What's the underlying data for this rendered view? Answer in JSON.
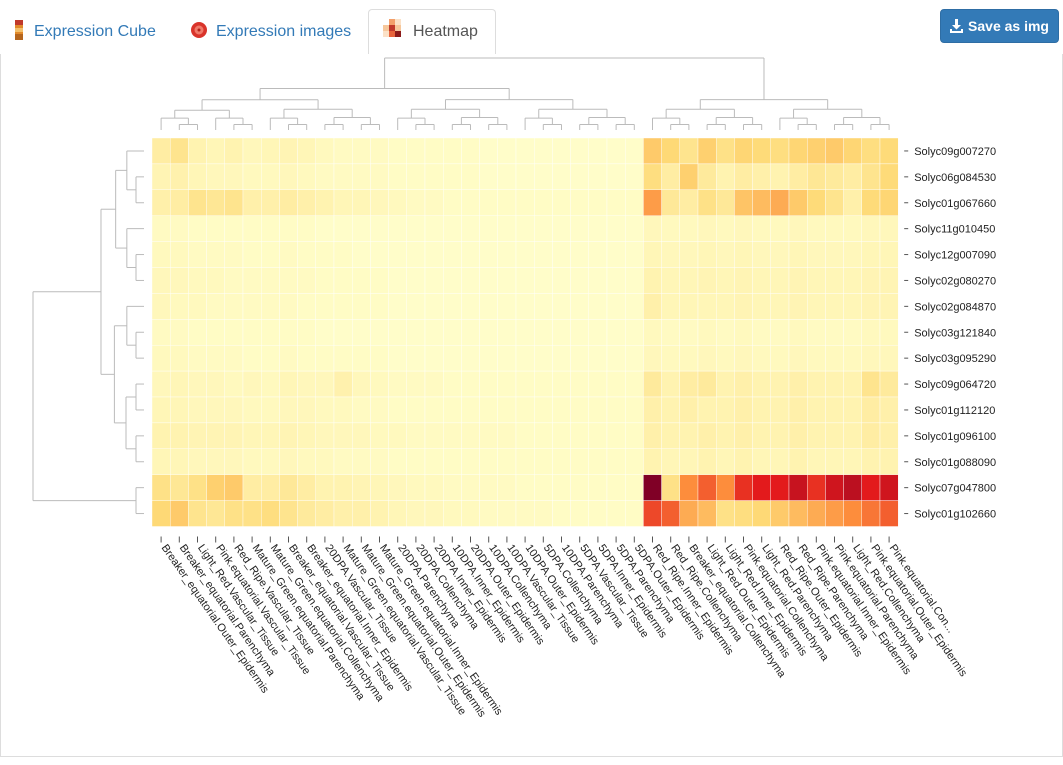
{
  "tabs": [
    {
      "label": "Expression Cube",
      "icon": "cube-icon",
      "active": false
    },
    {
      "label": "Expression images",
      "icon": "tomato-icon",
      "active": false
    },
    {
      "label": "Heatmap",
      "icon": "heatmap-icon",
      "active": true
    }
  ],
  "save_button": {
    "label": "Save as img",
    "icon": "download-icon"
  },
  "colors": {
    "accent": "#337ab7",
    "heat_low": "#ffffcc",
    "heat_mid": "#feb24c",
    "heat_high": "#800026"
  },
  "chart_data": {
    "type": "heatmap",
    "rows": [
      "Solyc09g007270",
      "Solyc06g084530",
      "Solyc01g067660",
      "Solyc11g010450",
      "Solyc12g007090",
      "Solyc02g080270",
      "Solyc02g084870",
      "Solyc03g121840",
      "Solyc03g095290",
      "Solyc09g064720",
      "Solyc01g112120",
      "Solyc01g096100",
      "Solyc01g088090",
      "Solyc07g047800",
      "Solyc01g102660"
    ],
    "columns": [
      "Breaker_equatorial.Outer_Epidermis",
      "Breaker_equatorial.Parenchyma",
      "Light_Red.Vascular_Tissue",
      "Pink.equatorial.Vascular_Tissue",
      "Red_Ripe.Vascular_Tissue",
      "Mature_Green.equatorial.Parenchyma",
      "Mature_Green.equatorial.Collenchyma",
      "Breaker_equatorial.Vascular_Tissue",
      "Breaker_equatorial.Inner_Epidermis",
      "20DPA.Vascular_Tissue",
      "Mature_Green.equatorial.Vascular_Tissue",
      "Mature_Green.equatorial.Outer_Epidermis",
      "Mature_Green.equatorial.Inner_Epidermis",
      "20DPA.Parenchyma",
      "20DPA.Collenchyma",
      "20DPA.Inner_Epidermis",
      "10DPA.Inner_Epidermis",
      "20DPA.Outer_Epidermis",
      "10DPA.Collenchyma",
      "10DPA.Vascular_Tissue",
      "10DPA.Outer_Epidermis",
      "5DPA.Collenchyma",
      "10DPA.Parenchyma",
      "5DPA.Vascular_Tissue",
      "5DPA.Inner_Epidermis",
      "5DPA.Parenchyma",
      "5DPA.Outer_Epidermis",
      "Red_Ripe.Inner_Epidermis",
      "Red_Ripe.Collenchyma",
      "Breaker_equatorial.Collenchyma",
      "Light_Red.Outer_Epidermis",
      "Light_Red.Inner_Epidermis",
      "Pink.equatorial.Collenchyma",
      "Light_Red.Parenchyma",
      "Red_Ripe.Outer_Epidermis",
      "Red_Ripe.Parenchyma",
      "Pink.equatorial.Inner_Epidermis",
      "Pink.equatorial.Parenchyma",
      "Light_Red.Collenchyma",
      "Pink.equatorial.Outer_Epidermis",
      "Pink.equatorial.Con..."
    ],
    "values_scale": "0 = lowest (pale yellow) to 1 = highest (dark red)",
    "values": [
      [
        0.12,
        0.18,
        0.08,
        0.06,
        0.08,
        0.05,
        0.06,
        0.07,
        0.06,
        0.04,
        0.03,
        0.03,
        0.03,
        0.02,
        0.02,
        0.02,
        0.02,
        0.02,
        0.01,
        0.01,
        0.01,
        0.01,
        0.01,
        0.01,
        0.01,
        0.01,
        0.01,
        0.3,
        0.25,
        0.18,
        0.28,
        0.2,
        0.26,
        0.24,
        0.22,
        0.26,
        0.28,
        0.3,
        0.26,
        0.22,
        0.24
      ],
      [
        0.07,
        0.09,
        0.06,
        0.05,
        0.05,
        0.04,
        0.04,
        0.05,
        0.04,
        0.03,
        0.03,
        0.03,
        0.03,
        0.02,
        0.02,
        0.02,
        0.02,
        0.02,
        0.01,
        0.01,
        0.01,
        0.01,
        0.01,
        0.01,
        0.01,
        0.01,
        0.01,
        0.22,
        0.12,
        0.28,
        0.14,
        0.08,
        0.12,
        0.1,
        0.08,
        0.12,
        0.16,
        0.14,
        0.12,
        0.18,
        0.24
      ],
      [
        0.1,
        0.12,
        0.18,
        0.16,
        0.18,
        0.1,
        0.1,
        0.12,
        0.1,
        0.08,
        0.06,
        0.06,
        0.05,
        0.04,
        0.03,
        0.03,
        0.02,
        0.02,
        0.02,
        0.02,
        0.02,
        0.02,
        0.02,
        0.02,
        0.02,
        0.02,
        0.02,
        0.45,
        0.15,
        0.12,
        0.2,
        0.15,
        0.32,
        0.35,
        0.4,
        0.3,
        0.24,
        0.18,
        0.1,
        0.24,
        0.26
      ],
      [
        0.03,
        0.03,
        0.02,
        0.02,
        0.02,
        0.02,
        0.02,
        0.02,
        0.02,
        0.01,
        0.01,
        0.01,
        0.01,
        0.01,
        0.01,
        0.01,
        0.01,
        0.01,
        0.01,
        0.01,
        0.01,
        0.01,
        0.01,
        0.01,
        0.01,
        0.01,
        0.01,
        0.05,
        0.04,
        0.04,
        0.05,
        0.04,
        0.05,
        0.04,
        0.04,
        0.05,
        0.04,
        0.04,
        0.04,
        0.05,
        0.05
      ],
      [
        0.04,
        0.04,
        0.03,
        0.03,
        0.03,
        0.02,
        0.02,
        0.03,
        0.02,
        0.02,
        0.02,
        0.01,
        0.01,
        0.01,
        0.01,
        0.01,
        0.01,
        0.01,
        0.01,
        0.01,
        0.01,
        0.01,
        0.01,
        0.01,
        0.01,
        0.01,
        0.01,
        0.06,
        0.05,
        0.05,
        0.06,
        0.05,
        0.06,
        0.05,
        0.05,
        0.06,
        0.05,
        0.05,
        0.05,
        0.06,
        0.06
      ],
      [
        0.05,
        0.05,
        0.04,
        0.04,
        0.03,
        0.03,
        0.03,
        0.03,
        0.03,
        0.02,
        0.02,
        0.02,
        0.02,
        0.01,
        0.01,
        0.01,
        0.01,
        0.01,
        0.01,
        0.01,
        0.01,
        0.01,
        0.01,
        0.01,
        0.01,
        0.01,
        0.01,
        0.08,
        0.06,
        0.06,
        0.07,
        0.06,
        0.07,
        0.06,
        0.06,
        0.07,
        0.06,
        0.06,
        0.06,
        0.07,
        0.07
      ],
      [
        0.05,
        0.04,
        0.04,
        0.03,
        0.03,
        0.03,
        0.03,
        0.03,
        0.02,
        0.02,
        0.02,
        0.02,
        0.02,
        0.01,
        0.01,
        0.01,
        0.01,
        0.01,
        0.01,
        0.01,
        0.01,
        0.01,
        0.01,
        0.01,
        0.01,
        0.01,
        0.01,
        0.1,
        0.06,
        0.06,
        0.06,
        0.06,
        0.07,
        0.06,
        0.06,
        0.07,
        0.06,
        0.06,
        0.06,
        0.07,
        0.07
      ],
      [
        0.03,
        0.03,
        0.02,
        0.02,
        0.02,
        0.02,
        0.02,
        0.02,
        0.02,
        0.01,
        0.01,
        0.01,
        0.01,
        0.01,
        0.01,
        0.01,
        0.01,
        0.01,
        0.01,
        0.01,
        0.01,
        0.01,
        0.01,
        0.01,
        0.01,
        0.01,
        0.01,
        0.04,
        0.03,
        0.03,
        0.04,
        0.03,
        0.04,
        0.03,
        0.03,
        0.04,
        0.03,
        0.03,
        0.03,
        0.04,
        0.04
      ],
      [
        0.04,
        0.04,
        0.03,
        0.03,
        0.03,
        0.02,
        0.02,
        0.03,
        0.02,
        0.02,
        0.02,
        0.02,
        0.02,
        0.01,
        0.01,
        0.01,
        0.01,
        0.01,
        0.01,
        0.01,
        0.01,
        0.01,
        0.01,
        0.01,
        0.01,
        0.01,
        0.01,
        0.05,
        0.04,
        0.04,
        0.05,
        0.04,
        0.05,
        0.04,
        0.04,
        0.05,
        0.04,
        0.04,
        0.04,
        0.05,
        0.05
      ],
      [
        0.05,
        0.06,
        0.05,
        0.05,
        0.04,
        0.05,
        0.04,
        0.06,
        0.05,
        0.05,
        0.09,
        0.05,
        0.04,
        0.03,
        0.03,
        0.03,
        0.02,
        0.02,
        0.02,
        0.02,
        0.02,
        0.02,
        0.02,
        0.02,
        0.02,
        0.02,
        0.02,
        0.14,
        0.08,
        0.12,
        0.14,
        0.08,
        0.1,
        0.08,
        0.08,
        0.1,
        0.08,
        0.08,
        0.08,
        0.18,
        0.14
      ],
      [
        0.06,
        0.06,
        0.05,
        0.05,
        0.05,
        0.04,
        0.04,
        0.05,
        0.05,
        0.04,
        0.04,
        0.03,
        0.03,
        0.02,
        0.02,
        0.02,
        0.02,
        0.02,
        0.02,
        0.02,
        0.02,
        0.02,
        0.02,
        0.02,
        0.02,
        0.02,
        0.02,
        0.1,
        0.08,
        0.1,
        0.08,
        0.08,
        0.1,
        0.08,
        0.08,
        0.1,
        0.08,
        0.08,
        0.08,
        0.12,
        0.1
      ],
      [
        0.08,
        0.08,
        0.07,
        0.07,
        0.07,
        0.06,
        0.06,
        0.07,
        0.06,
        0.05,
        0.05,
        0.05,
        0.04,
        0.04,
        0.03,
        0.03,
        0.03,
        0.03,
        0.03,
        0.03,
        0.02,
        0.02,
        0.02,
        0.02,
        0.02,
        0.02,
        0.02,
        0.1,
        0.08,
        0.08,
        0.1,
        0.08,
        0.1,
        0.08,
        0.08,
        0.1,
        0.08,
        0.08,
        0.08,
        0.12,
        0.1
      ],
      [
        0.06,
        0.06,
        0.05,
        0.05,
        0.05,
        0.04,
        0.04,
        0.05,
        0.04,
        0.04,
        0.03,
        0.03,
        0.03,
        0.02,
        0.02,
        0.02,
        0.02,
        0.02,
        0.02,
        0.02,
        0.02,
        0.02,
        0.02,
        0.02,
        0.02,
        0.02,
        0.02,
        0.08,
        0.06,
        0.06,
        0.08,
        0.06,
        0.08,
        0.06,
        0.06,
        0.08,
        0.06,
        0.06,
        0.06,
        0.08,
        0.08
      ],
      [
        0.2,
        0.16,
        0.2,
        0.28,
        0.3,
        0.12,
        0.12,
        0.15,
        0.12,
        0.08,
        0.08,
        0.07,
        0.06,
        0.05,
        0.04,
        0.04,
        0.03,
        0.03,
        0.03,
        0.03,
        0.02,
        0.02,
        0.02,
        0.02,
        0.02,
        0.02,
        0.02,
        1.0,
        0.2,
        0.5,
        0.6,
        0.5,
        0.7,
        0.75,
        0.75,
        0.82,
        0.7,
        0.8,
        0.85,
        0.75,
        0.8
      ],
      [
        0.25,
        0.3,
        0.18,
        0.16,
        0.2,
        0.2,
        0.22,
        0.18,
        0.14,
        0.12,
        0.1,
        0.1,
        0.08,
        0.06,
        0.05,
        0.05,
        0.04,
        0.04,
        0.03,
        0.03,
        0.03,
        0.03,
        0.02,
        0.02,
        0.02,
        0.02,
        0.02,
        0.65,
        0.6,
        0.4,
        0.35,
        0.2,
        0.22,
        0.25,
        0.3,
        0.35,
        0.4,
        0.45,
        0.5,
        0.55,
        0.6
      ]
    ]
  }
}
